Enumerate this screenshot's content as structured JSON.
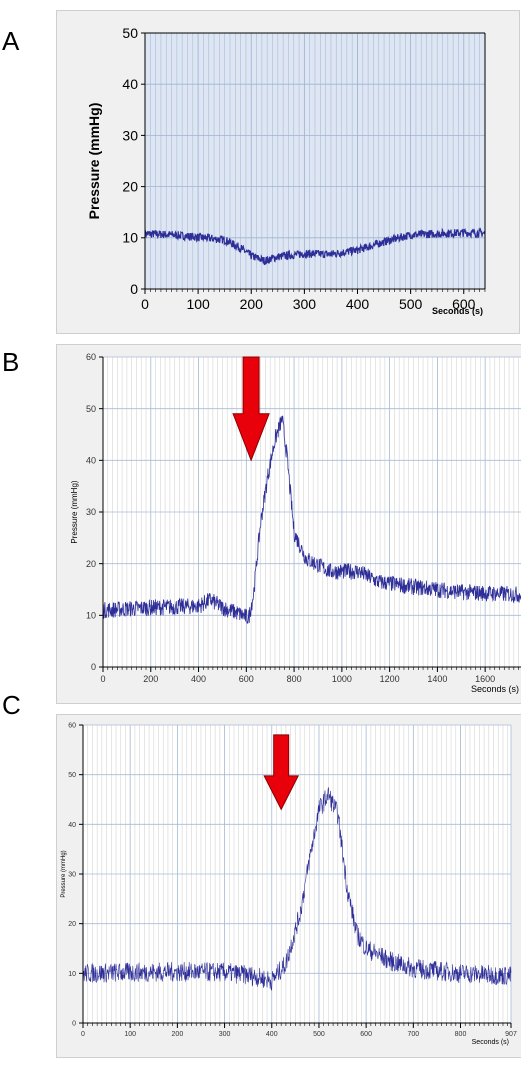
{
  "panels": [
    {
      "letter": "A"
    },
    {
      "letter": "B"
    },
    {
      "letter": "C"
    }
  ],
  "colors": {
    "trace": "#2e2e99",
    "arrow": "#e8000a",
    "grid": "#9bb2d1"
  },
  "chart_data": [
    {
      "type": "line",
      "panel": "A",
      "title": "",
      "xlabel": "Seconds (s)",
      "ylabel": "Pressure (mmHg)",
      "xlim": [
        0,
        640
      ],
      "ylim": [
        0,
        50
      ],
      "xticks": [
        0,
        100,
        200,
        300,
        400,
        500,
        600
      ],
      "yticks": [
        0,
        10,
        20,
        30,
        40,
        50
      ],
      "grid": true,
      "series": [
        {
          "x": [
            0,
            50,
            100,
            150,
            180,
            200,
            225,
            250,
            300,
            350,
            400,
            450,
            500,
            550,
            600,
            640
          ],
          "y": [
            10.8,
            10.6,
            10.1,
            9.6,
            8.0,
            6.5,
            5.5,
            6.3,
            6.9,
            6.8,
            7.6,
            9.2,
            10.6,
            10.8,
            11.0,
            10.9
          ],
          "noise": 0.8
        }
      ],
      "annotations": []
    },
    {
      "type": "line",
      "panel": "B",
      "title": "",
      "xlabel": "Seconds (s)",
      "ylabel": "Pressure (mmHg)",
      "xlim": [
        0,
        1750
      ],
      "ylim": [
        0,
        60
      ],
      "xticks": [
        0,
        200,
        400,
        600,
        800,
        1000,
        1200,
        1400,
        1600
      ],
      "yticks": [
        0,
        10,
        20,
        30,
        40,
        50,
        60
      ],
      "grid": true,
      "series": [
        {
          "x": [
            0,
            200,
            400,
            450,
            500,
            560,
            610,
            630,
            660,
            690,
            720,
            750,
            770,
            800,
            850,
            950,
            1070,
            1150,
            1300,
            1500,
            1750
          ],
          "y": [
            11,
            11.5,
            11.8,
            13,
            11.5,
            10.5,
            9.5,
            14,
            28,
            37,
            44,
            48,
            41,
            26,
            21,
            18.5,
            18.5,
            16.5,
            15.5,
            14.5,
            14
          ],
          "noise": 1.6
        }
      ],
      "annotations": [
        {
          "type": "arrow",
          "x": 620,
          "y_top": 60,
          "y_tip": 40,
          "direction": "down"
        }
      ]
    },
    {
      "type": "line",
      "panel": "C",
      "title": "",
      "xlabel": "Seconds (s)",
      "ylabel": "Pressure (mmHg)",
      "xlim": [
        0,
        907
      ],
      "ylim": [
        0,
        60
      ],
      "xticks": [
        0,
        100,
        200,
        300,
        400,
        500,
        600,
        700,
        800,
        907
      ],
      "yticks": [
        0,
        10,
        20,
        30,
        40,
        50,
        60
      ],
      "grid": true,
      "series": [
        {
          "x": [
            0,
            100,
            200,
            300,
            360,
            400,
            430,
            460,
            480,
            500,
            520,
            540,
            560,
            580,
            600,
            650,
            700,
            800,
            907
          ],
          "y": [
            10,
            10.2,
            10.3,
            10.2,
            9.5,
            8.5,
            12,
            22,
            33,
            43,
            46,
            42,
            27,
            18,
            15,
            12.5,
            11,
            10,
            9.5
          ],
          "noise": 2.0
        }
      ],
      "annotations": [
        {
          "type": "arrow",
          "x": 420,
          "y_top": 58,
          "y_tip": 43,
          "direction": "down"
        }
      ]
    }
  ]
}
